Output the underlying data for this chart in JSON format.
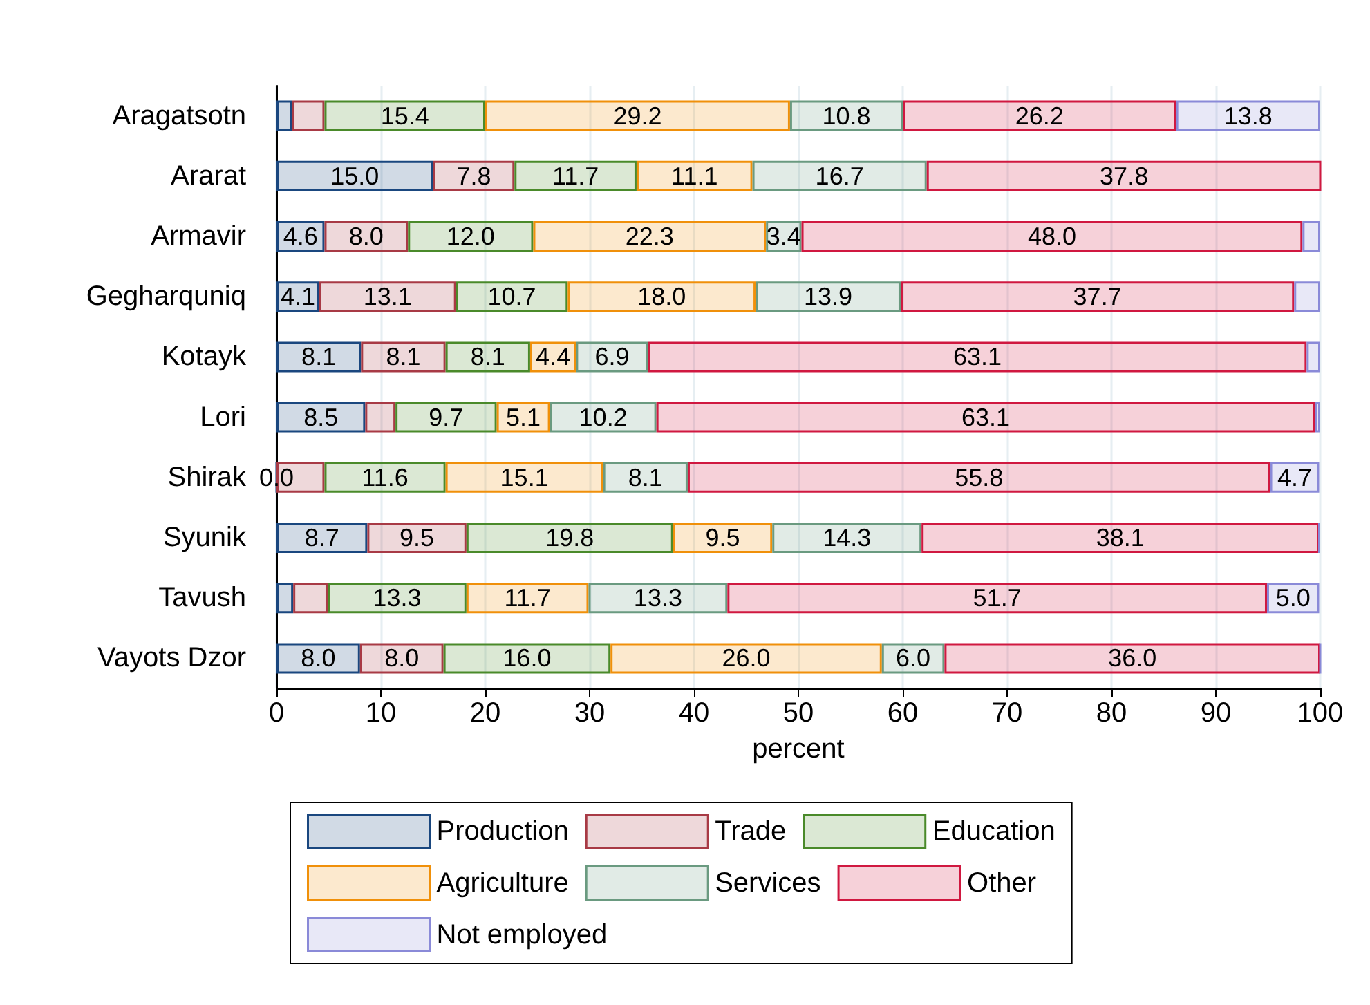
{
  "chart_data": {
    "type": "bar",
    "orientation": "horizontal",
    "stacked": true,
    "xlabel": "percent",
    "categories": [
      "Aragatsotn",
      "Ararat",
      "Armavir",
      "Gegharquniq",
      "Kotayk",
      "Lori",
      "Shirak",
      "Syunik",
      "Tavush",
      "Vayots Dzor"
    ],
    "series": [
      {
        "name": "Production",
        "color": "#1a477f",
        "values": [
          1.5,
          15.0,
          4.6,
          4.1,
          8.1,
          8.5,
          0.0,
          8.7,
          1.6,
          8.0
        ],
        "value_labels": [
          null,
          "15.0",
          "4.6",
          "4.1",
          "8.1",
          "8.5",
          "0.0",
          "8.7",
          null,
          "8.0"
        ]
      },
      {
        "name": "Trade",
        "color": "#a83a45",
        "values": [
          3.1,
          7.8,
          8.0,
          13.1,
          8.1,
          2.9,
          4.6,
          9.5,
          3.3,
          8.0
        ],
        "value_labels": [
          null,
          "7.8",
          "8.0",
          "13.1",
          "8.1",
          null,
          null,
          "9.5",
          null,
          "8.0"
        ]
      },
      {
        "name": "Education",
        "color": "#4a8a2a",
        "values": [
          15.4,
          11.7,
          12.0,
          10.7,
          8.1,
          9.7,
          11.6,
          19.8,
          13.3,
          16.0
        ],
        "value_labels": [
          "15.4",
          "11.7",
          "12.0",
          "10.7",
          "8.1",
          "9.7",
          "11.6",
          "19.8",
          "13.3",
          "16.0"
        ]
      },
      {
        "name": "Agriculture",
        "color": "#f0900a",
        "values": [
          29.2,
          11.1,
          22.3,
          18.0,
          4.4,
          5.1,
          15.1,
          9.5,
          11.7,
          26.0
        ],
        "value_labels": [
          "29.2",
          "11.1",
          "22.3",
          "18.0",
          "4.4",
          "5.1",
          "15.1",
          "9.5",
          "11.7",
          "26.0"
        ]
      },
      {
        "name": "Services",
        "color": "#6a9a80",
        "values": [
          10.8,
          16.7,
          3.4,
          13.9,
          6.9,
          10.2,
          8.1,
          14.3,
          13.3,
          6.0
        ],
        "value_labels": [
          "10.8",
          "16.7",
          "3.4",
          "13.9",
          "6.9",
          "10.2",
          "8.1",
          "14.3",
          "13.3",
          "6.0"
        ]
      },
      {
        "name": "Other",
        "color": "#d01840",
        "values": [
          26.2,
          37.8,
          48.0,
          37.7,
          63.1,
          63.1,
          55.8,
          38.1,
          51.7,
          36.0
        ],
        "value_labels": [
          "26.2",
          "37.8",
          "48.0",
          "37.7",
          "63.1",
          "63.1",
          "55.8",
          "38.1",
          "51.7",
          "36.0"
        ]
      },
      {
        "name": "Not employed",
        "color": "#8a8ad8",
        "values": [
          13.8,
          0,
          1.7,
          2.5,
          1.3,
          0.5,
          4.7,
          0,
          5.0,
          0
        ],
        "value_labels": [
          "13.8",
          null,
          null,
          null,
          null,
          null,
          "4.7",
          null,
          "5.0",
          null
        ]
      }
    ],
    "xlim": [
      0,
      100
    ],
    "xticks": [
      0,
      10,
      20,
      30,
      40,
      50,
      60,
      70,
      80,
      90,
      100
    ],
    "grid": "x",
    "legend": "bottom"
  }
}
